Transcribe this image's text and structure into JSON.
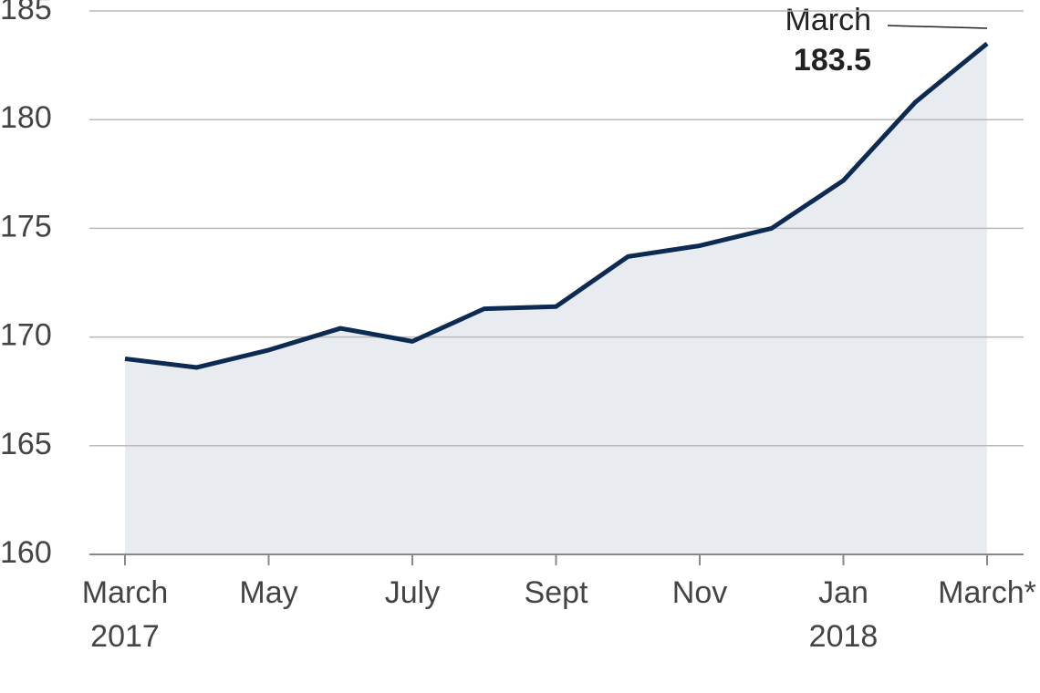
{
  "chart_data": {
    "type": "area",
    "categories": [
      "March 2017",
      null,
      "May",
      null,
      "July",
      null,
      "Sept",
      null,
      "Nov",
      null,
      "Jan 2018",
      null,
      "March*"
    ],
    "values": [
      169.0,
      168.6,
      169.4,
      170.4,
      169.8,
      171.3,
      171.4,
      173.7,
      174.2,
      175.0,
      177.2,
      180.8,
      183.5
    ],
    "color": "#0c2a52",
    "fill": "#e8ecf0",
    "ylim": [
      160,
      185
    ],
    "yticks": [
      160,
      165,
      170,
      175,
      180,
      185
    ],
    "grid": true,
    "annotation": "March"
  }
}
